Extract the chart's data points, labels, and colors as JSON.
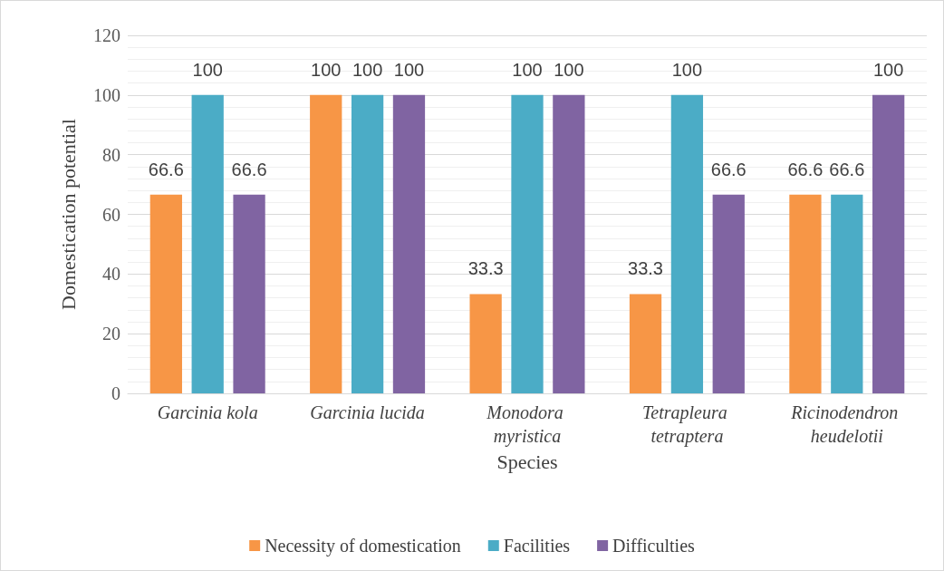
{
  "chart_data": {
    "type": "bar",
    "xlabel": "Species",
    "ylabel": "Domestication potential",
    "categories": [
      "Garcinia kola",
      "Garcinia lucida",
      "Monodora myristica",
      "Tetrapleura tetraptera",
      "Ricinodendron heudelotii"
    ],
    "series": [
      {
        "name": "Necessity of domestication",
        "color": "#f79646",
        "values": [
          66.6,
          100,
          33.3,
          33.3,
          66.6
        ]
      },
      {
        "name": "Facilities",
        "color": "#4bacc6",
        "values": [
          100,
          100,
          100,
          100,
          66.6
        ]
      },
      {
        "name": "Difficulties",
        "color": "#8064a2",
        "values": [
          66.6,
          100,
          100,
          66.6,
          100
        ]
      }
    ],
    "ylim": [
      0,
      120
    ],
    "yticks": [
      0,
      20,
      40,
      60,
      80,
      100,
      120
    ],
    "grid": "y",
    "legend": "bottom",
    "data_labels": true
  }
}
